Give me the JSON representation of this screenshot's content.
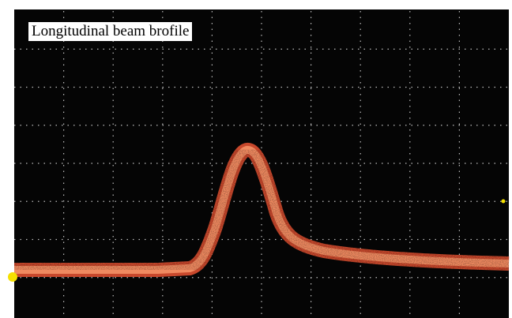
{
  "label": "Longitudinal beam brofile"
}
